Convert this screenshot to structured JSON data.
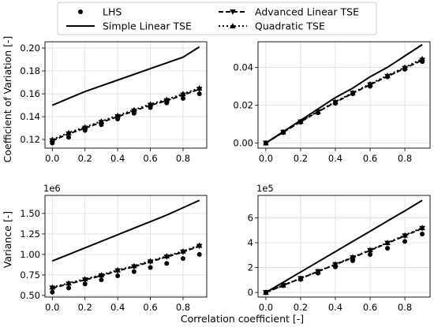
{
  "chart_data": {
    "type": "line",
    "layout": "2x2 grid of line plots with shared legend at top",
    "x": [
      0.0,
      0.1,
      0.2,
      0.3,
      0.4,
      0.5,
      0.6,
      0.7,
      0.8,
      0.9
    ],
    "legend": {
      "placement": "top-center",
      "entries": [
        {
          "name": "LHS",
          "style": "markers",
          "marker": "circle"
        },
        {
          "name": "Simple Linear TSE",
          "style": "solid"
        },
        {
          "name": "Advanced Linear TSE",
          "style": "dashed",
          "marker": "triangle-down"
        },
        {
          "name": "Quadratic TSE",
          "style": "dotted",
          "marker": "triangle-up"
        }
      ]
    },
    "xlabel": "Correlation coefficient [-]",
    "ylabel_top": "Coefficient of Variation [-]",
    "ylabel_bottom": "Variance [-]",
    "grid": true,
    "panels": [
      {
        "position": "top-left",
        "xlim": [
          -0.045,
          0.945
        ],
        "ylim": [
          0.1125,
          0.2055
        ],
        "xticks": [
          "0.0",
          "0.2",
          "0.4",
          "0.6",
          "0.8"
        ],
        "yticks": [
          "0.12",
          "0.14",
          "0.16",
          "0.18",
          "0.20"
        ],
        "offset_label": "",
        "series": [
          {
            "name": "LHS",
            "values": [
              0.117,
              0.122,
              0.128,
              0.133,
              0.138,
              0.143,
              0.148,
              0.152,
              0.156,
              0.16
            ]
          },
          {
            "name": "Simple Linear TSE",
            "values": [
              0.15,
              0.156,
              0.162,
              0.167,
              0.172,
              0.177,
              0.182,
              0.187,
              0.192,
              0.201
            ]
          },
          {
            "name": "Advanced Linear TSE",
            "values": [
              0.119,
              0.125,
              0.13,
              0.135,
              0.14,
              0.145,
              0.15,
              0.154,
              0.159,
              0.164
            ]
          },
          {
            "name": "Quadratic TSE",
            "values": [
              0.12,
              0.126,
              0.131,
              0.136,
              0.141,
              0.146,
              0.151,
              0.155,
              0.16,
              0.165
            ]
          }
        ]
      },
      {
        "position": "top-right",
        "xlim": [
          -0.045,
          0.945
        ],
        "ylim": [
          -0.0027,
          0.0535
        ],
        "xticks": [
          "0.0",
          "0.2",
          "0.4",
          "0.6",
          "0.8"
        ],
        "yticks": [
          "0.00",
          "0.02",
          "0.04"
        ],
        "offset_label": "",
        "series": [
          {
            "name": "LHS",
            "values": [
              0.0,
              0.0055,
              0.011,
              0.016,
              0.021,
              0.026,
              0.03,
              0.035,
              0.039,
              0.043
            ]
          },
          {
            "name": "Simple Linear TSE",
            "values": [
              0.0,
              0.006,
              0.012,
              0.018,
              0.024,
              0.029,
              0.035,
              0.04,
              0.046,
              0.052
            ]
          },
          {
            "name": "Advanced Linear TSE",
            "values": [
              0.0,
              0.0057,
              0.0112,
              0.0165,
              0.0215,
              0.0263,
              0.0308,
              0.0352,
              0.0395,
              0.0438
            ]
          },
          {
            "name": "Quadratic TSE",
            "values": [
              0.0,
              0.0058,
              0.0114,
              0.0167,
              0.0218,
              0.0266,
              0.0312,
              0.0357,
              0.04,
              0.0445
            ]
          }
        ]
      },
      {
        "position": "bottom-left",
        "xlim": [
          -0.045,
          0.945
        ],
        "ylim": [
          0.48,
          1.72
        ],
        "xticks": [
          "0.0",
          "0.2",
          "0.4",
          "0.6",
          "0.8"
        ],
        "yticks": [
          "0.50",
          "0.75",
          "1.00",
          "1.25",
          "1.50"
        ],
        "offset_label": "1e6",
        "series": [
          {
            "name": "LHS",
            "values": [
              0.54,
              0.59,
              0.64,
              0.69,
              0.74,
              0.79,
              0.84,
              0.89,
              0.95,
              1.0
            ]
          },
          {
            "name": "Simple Linear TSE",
            "values": [
              0.92,
              1.0,
              1.08,
              1.16,
              1.24,
              1.32,
              1.4,
              1.48,
              1.57,
              1.66
            ]
          },
          {
            "name": "Advanced Linear TSE",
            "values": [
              0.59,
              0.64,
              0.69,
              0.74,
              0.8,
              0.85,
              0.91,
              0.97,
              1.03,
              1.1
            ]
          },
          {
            "name": "Quadratic TSE",
            "values": [
              0.6,
              0.65,
              0.7,
              0.75,
              0.81,
              0.86,
              0.92,
              0.98,
              1.04,
              1.11
            ]
          }
        ]
      },
      {
        "position": "bottom-right",
        "xlim": [
          -0.045,
          0.945
        ],
        "ylim": [
          -0.37,
          7.8
        ],
        "xticks": [
          "0.0",
          "0.2",
          "0.4",
          "0.6",
          "0.8"
        ],
        "yticks": [
          "0",
          "2",
          "4",
          "6"
        ],
        "offset_label": "1e5",
        "series": [
          {
            "name": "LHS",
            "values": [
              0.0,
              0.55,
              1.05,
              1.55,
              2.05,
              2.55,
              3.05,
              3.55,
              4.1,
              4.7
            ]
          },
          {
            "name": "Simple Linear TSE",
            "values": [
              0.0,
              0.82,
              1.64,
              2.46,
              3.28,
              4.1,
              4.92,
              5.74,
              6.56,
              7.4
            ]
          },
          {
            "name": "Advanced Linear TSE",
            "values": [
              0.0,
              0.57,
              1.12,
              1.68,
              2.24,
              2.8,
              3.38,
              3.96,
              4.55,
              5.15
            ]
          },
          {
            "name": "Quadratic TSE",
            "values": [
              0.0,
              0.58,
              1.14,
              1.7,
              2.27,
              2.84,
              3.42,
              4.0,
              4.6,
              5.2
            ]
          }
        ]
      }
    ]
  }
}
